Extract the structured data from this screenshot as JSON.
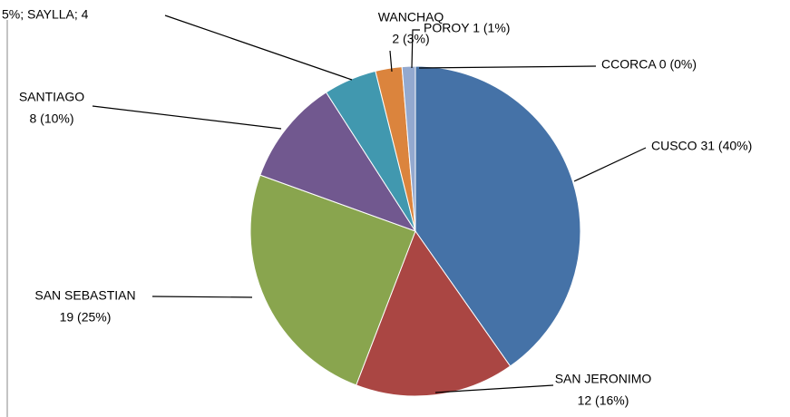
{
  "chart_data": {
    "type": "pie",
    "labels": [
      [
        "CUSCO 31 (40%)"
      ],
      [
        "SAN JERONIMO",
        "12 (16%)"
      ],
      [
        "SAN SEBASTIAN",
        "19 (25%)"
      ],
      [
        "SANTIAGO",
        "8 (10%)"
      ],
      [
        "5%; SAYLLA; 4"
      ],
      [
        "WANCHAQ",
        "2 (3%)"
      ],
      [
        "POROY 1 (1%)"
      ],
      [
        "CCORCA 0 (0%)"
      ]
    ],
    "values": [
      31,
      12,
      19,
      8,
      4,
      2,
      1,
      0
    ],
    "colors": [
      "#4572a7",
      "#aa4643",
      "#89a54e",
      "#71588f",
      "#4198af",
      "#db843d",
      "#93a9cf",
      "#b9cde5"
    ]
  }
}
